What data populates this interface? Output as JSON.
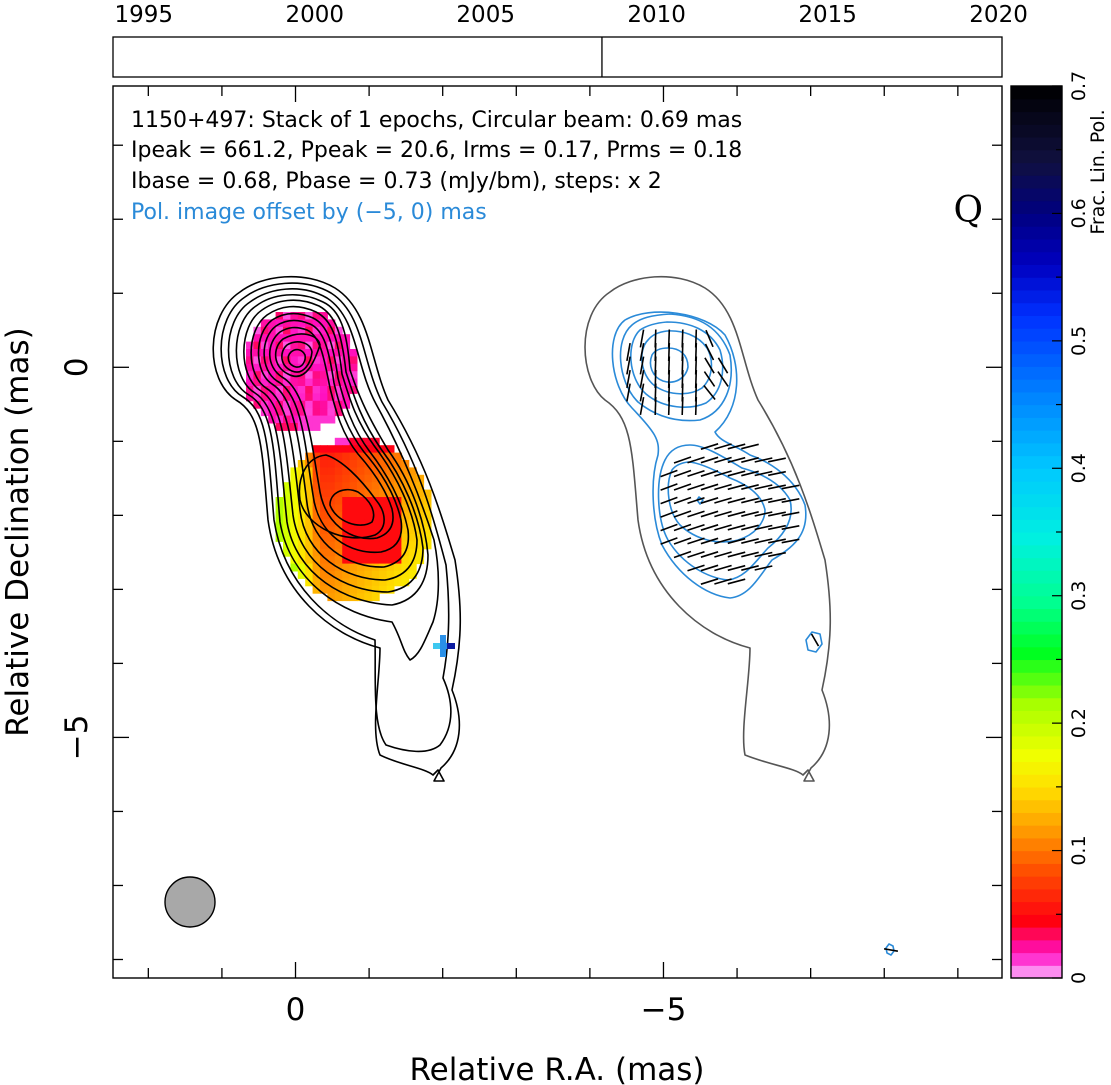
{
  "chart_data": {
    "type": "contour",
    "source": "1150+497",
    "timeline": {
      "tick_labels": [
        "1995",
        "2000",
        "2005",
        "2010",
        "2015",
        "2020"
      ],
      "tick_years": [
        1995,
        2000,
        2005,
        2010,
        2015,
        2020
      ],
      "range": [
        1994.1,
        2020.1
      ],
      "epoch_marker_year": 2008.4
    },
    "info_lines": [
      "1150+497: Stack of 1 epochs, Circular beam: 0.69 mas",
      "Ipeak = 661.2, Ppeak = 20.6, Irms = 0.17, Prms = 0.18",
      "Ibase = 0.68, Pbase = 0.73 (mJy/bm), steps: x 2",
      "Pol. image offset by (−5, 0) mas"
    ],
    "quality_label": "Q",
    "xlabel": "Relative R.A. (mas)",
    "ylabel": "Relative Declination (mas)",
    "x_tick_labels": [
      "0",
      "−5"
    ],
    "x_tick_values": [
      0,
      -5
    ],
    "y_tick_labels": [
      "0",
      "−5"
    ],
    "y_tick_values": [
      0,
      -5
    ],
    "xlim": [
      2.48,
      -9.6
    ],
    "ylim": [
      -8.25,
      3.8
    ],
    "beam": {
      "shape": "circle",
      "diameter_mas": 0.69,
      "center": [
        1.43,
        -7.25
      ]
    },
    "colorbar": {
      "label": "Frac. Lin. Pol.",
      "range": [
        0,
        0.7
      ],
      "tick_labels": [
        "0",
        "0.1",
        "0.2",
        "0.3",
        "0.4",
        "0.5",
        "0.6",
        "0.7"
      ],
      "tick_values": [
        0,
        0.1,
        0.2,
        0.3,
        0.4,
        0.5,
        0.6,
        0.7
      ]
    },
    "colors": {
      "total_intensity_contours": "#000000",
      "pol_contours": "#2a8ad8",
      "pol_outline_contour": "#555555",
      "beam_fill": "#a8a8a8",
      "info_pol_text": "#2a8ad8"
    }
  }
}
